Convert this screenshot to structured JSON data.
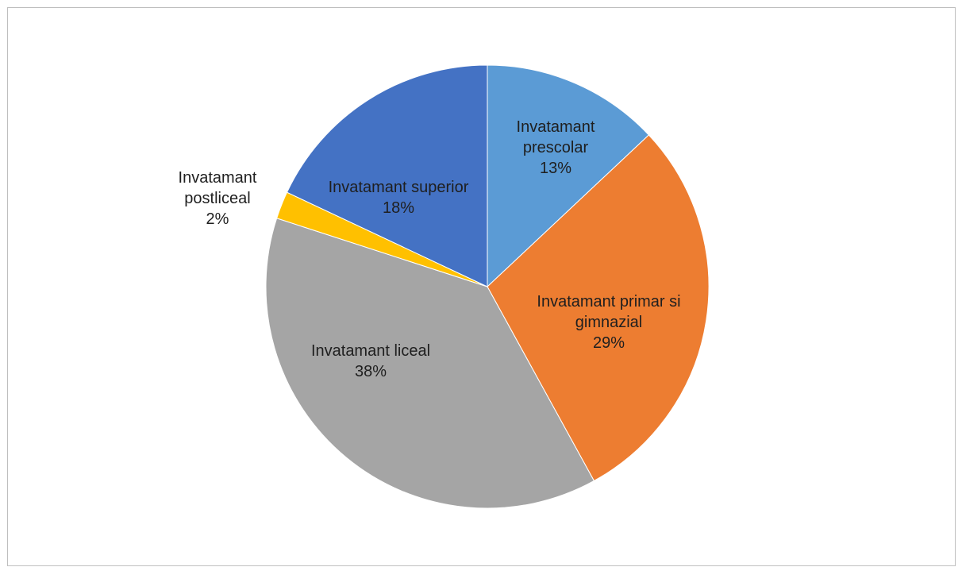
{
  "chart_data": {
    "type": "pie",
    "title": "",
    "start_angle_deg": 0,
    "direction": "clockwise",
    "legend": "none",
    "data_labels": "category-and-percent",
    "slices": [
      {
        "label_lines": [
          "Invatamant",
          "prescolar"
        ],
        "percent_text": "13%",
        "value": 13,
        "color": "#5B9BD5",
        "label_color": "#1f1f1f"
      },
      {
        "label_lines": [
          "Invatamant primar si",
          "gimnazial"
        ],
        "percent_text": "29%",
        "value": 29,
        "color": "#ED7D31",
        "label_color": "#1f1f1f"
      },
      {
        "label_lines": [
          "Invatamant liceal"
        ],
        "percent_text": "38%",
        "value": 38,
        "color": "#A5A5A5",
        "label_color": "#1f1f1f"
      },
      {
        "label_lines": [
          "Invatamant",
          "postliceal"
        ],
        "percent_text": "2%",
        "value": 2,
        "color": "#FFC000",
        "label_color": "#1f1f1f"
      },
      {
        "label_lines": [
          "Invatamant superior"
        ],
        "percent_text": "18%",
        "value": 18,
        "color": "#4472C4",
        "label_color": "#1f1f1f"
      }
    ]
  }
}
